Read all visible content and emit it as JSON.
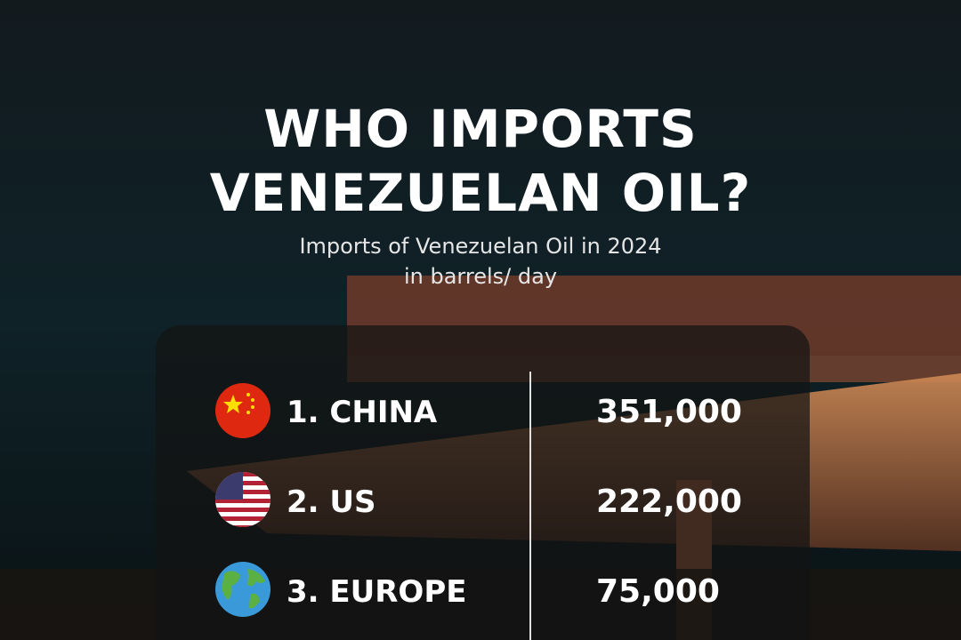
{
  "header": {
    "title_lines": [
      "WHO IMPORTS",
      "VENEZUELAN OIL?"
    ],
    "subtitle_lines": [
      "Imports of Venezuelan Oil in 2024",
      "in barrels/ day"
    ]
  },
  "table": {
    "rows": [
      [
        "1. CHINA",
        "351,000"
      ],
      [
        "2. US",
        "222,000"
      ],
      [
        "3. EUROPE",
        "75,000"
      ]
    ]
  }
}
